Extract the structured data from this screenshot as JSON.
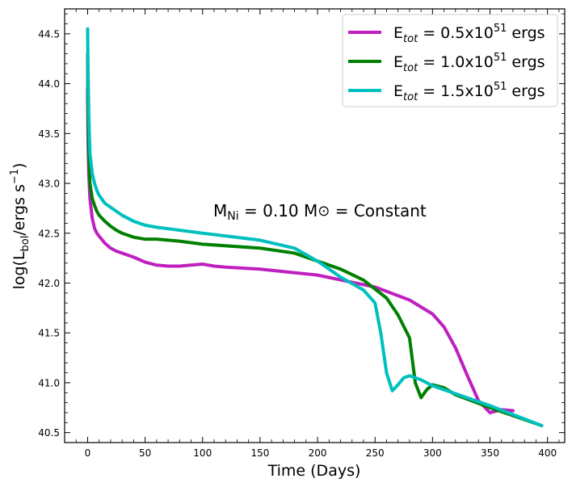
{
  "chart_data": {
    "type": "line",
    "xlabel": "Time (Days)",
    "ylabel": "log(L_bol/ergs s^-1)",
    "ylabel_parts": {
      "pre": "log(L",
      "sub": "bol",
      "mid": "/ergs s",
      "sup": "−1",
      "post": ")"
    },
    "xlim": [
      -20,
      415
    ],
    "ylim": [
      40.4,
      44.75
    ],
    "x_ticks": [
      0,
      50,
      100,
      150,
      200,
      250,
      300,
      350,
      400
    ],
    "x_tick_labels": [
      "0",
      "50",
      "100",
      "150",
      "200",
      "250",
      "300",
      "350",
      "400"
    ],
    "y_ticks": [
      40.5,
      41.0,
      41.5,
      42.0,
      42.5,
      43.0,
      43.5,
      44.0,
      44.5
    ],
    "y_tick_labels": [
      "40.5",
      "41.0",
      "41.5",
      "42.0",
      "42.5",
      "43.0",
      "43.5",
      "44.0",
      "44.5"
    ],
    "legend_position": "top-right",
    "annotation": {
      "pre": "M",
      "sub": "Ni",
      "mid": " = 0.10 M",
      "sym": "⊙",
      "post": " = Constant"
    },
    "series": [
      {
        "name": "E_tot = 0.5x10^51 ergs",
        "label": {
          "e": "E",
          "sub": "tot",
          "eq": " = 0.5x10",
          "sup": "51",
          "unit": " ergs"
        },
        "color": "#bf1fbf",
        "x": [
          0,
          0.3,
          1,
          2,
          4,
          6,
          8,
          10,
          15,
          20,
          25,
          30,
          40,
          50,
          60,
          70,
          80,
          90,
          100,
          110,
          120,
          150,
          200,
          250,
          280,
          300,
          310,
          320,
          330,
          340,
          350,
          360,
          370
        ],
        "y": [
          43.95,
          43.5,
          43.1,
          42.85,
          42.65,
          42.55,
          42.5,
          42.47,
          42.4,
          42.35,
          42.32,
          42.3,
          42.26,
          42.21,
          42.18,
          42.17,
          42.17,
          42.18,
          42.19,
          42.17,
          42.16,
          42.14,
          42.08,
          41.96,
          41.83,
          41.69,
          41.56,
          41.35,
          41.08,
          40.82,
          40.7,
          40.73,
          40.72
        ]
      },
      {
        "name": "E_tot = 1.0x10^51 ergs",
        "label": {
          "e": "E",
          "sub": "tot",
          "eq": " = 1.0x10",
          "sup": "51",
          "unit": " ergs"
        },
        "color": "#008000",
        "x": [
          0,
          0.3,
          1,
          2,
          4,
          6,
          8,
          10,
          15,
          20,
          25,
          30,
          40,
          50,
          60,
          80,
          100,
          150,
          180,
          200,
          220,
          240,
          260,
          270,
          280,
          285,
          290,
          295,
          300,
          310,
          320,
          350,
          395
        ],
        "y": [
          44.3,
          43.8,
          43.3,
          43.0,
          42.85,
          42.78,
          42.72,
          42.68,
          42.62,
          42.57,
          42.53,
          42.5,
          42.46,
          42.44,
          42.44,
          42.42,
          42.39,
          42.35,
          42.3,
          42.22,
          42.14,
          42.03,
          41.85,
          41.68,
          41.45,
          41.0,
          40.85,
          40.93,
          40.98,
          40.95,
          40.88,
          40.75,
          40.57
        ]
      },
      {
        "name": "E_tot = 1.5x10^51 ergs",
        "label": {
          "e": "E",
          "sub": "tot",
          "eq": " = 1.5x10",
          "sup": "51",
          "unit": " ergs"
        },
        "color": "#00bfbf",
        "x": [
          0,
          0.3,
          1,
          2,
          4,
          6,
          8,
          10,
          15,
          20,
          25,
          30,
          40,
          50,
          60,
          80,
          100,
          150,
          180,
          200,
          220,
          240,
          250,
          255,
          260,
          265,
          270,
          275,
          280,
          290,
          300,
          350,
          395
        ],
        "y": [
          44.55,
          44.2,
          43.7,
          43.3,
          43.1,
          43.0,
          42.93,
          42.88,
          42.8,
          42.76,
          42.72,
          42.68,
          42.62,
          42.58,
          42.56,
          42.53,
          42.5,
          42.43,
          42.35,
          42.22,
          42.06,
          41.93,
          41.8,
          41.5,
          41.1,
          40.92,
          40.98,
          41.05,
          41.07,
          41.03,
          40.97,
          40.77,
          40.57
        ]
      }
    ]
  }
}
